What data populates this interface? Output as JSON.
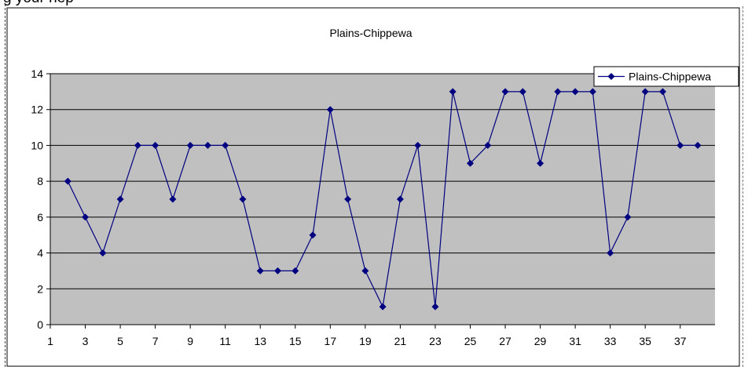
{
  "page": {
    "top_text_fragment": "g your hep"
  },
  "colors": {
    "series": "#000080",
    "plot_bg": "#c0c0c0",
    "grid": "#000000"
  },
  "chart_data": {
    "type": "line",
    "title": "Plains-Chippewa",
    "xlabel": "",
    "ylabel": "",
    "x": [
      2,
      3,
      4,
      5,
      6,
      7,
      8,
      9,
      10,
      11,
      12,
      13,
      14,
      15,
      16,
      17,
      18,
      19,
      20,
      21,
      22,
      23,
      24,
      25,
      26,
      27,
      28,
      29,
      30,
      31,
      32,
      33,
      34,
      35,
      36,
      37,
      38
    ],
    "series": [
      {
        "name": "Plains-Chippewa",
        "values": [
          8,
          6,
          4,
          7,
          10,
          10,
          7,
          10,
          10,
          10,
          7,
          3,
          3,
          3,
          5,
          12,
          7,
          3,
          1,
          7,
          10,
          1,
          13,
          9,
          10,
          13,
          13,
          9,
          13,
          13,
          13,
          4,
          6,
          13,
          13,
          10,
          10
        ]
      }
    ],
    "xlim": [
      1,
      38
    ],
    "ylim": [
      0,
      14
    ],
    "yticks": [
      "0",
      "2",
      "4",
      "6",
      "8",
      "10",
      "12",
      "14"
    ],
    "xticks": [
      "1",
      "3",
      "5",
      "7",
      "9",
      "11",
      "13",
      "15",
      "17",
      "19",
      "21",
      "23",
      "25",
      "27",
      "29",
      "31",
      "33",
      "35",
      "37"
    ],
    "grid": true,
    "legend": "top-right"
  }
}
